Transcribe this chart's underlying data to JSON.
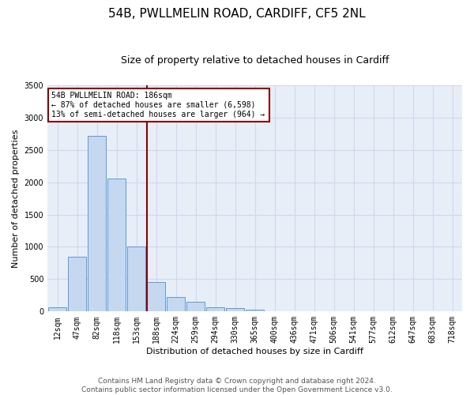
{
  "title": "54B, PWLLMELIN ROAD, CARDIFF, CF5 2NL",
  "subtitle": "Size of property relative to detached houses in Cardiff",
  "xlabel": "Distribution of detached houses by size in Cardiff",
  "ylabel": "Number of detached properties",
  "footnote1": "Contains HM Land Registry data © Crown copyright and database right 2024.",
  "footnote2": "Contains public sector information licensed under the Open Government Licence v3.0.",
  "bin_labels": [
    "12sqm",
    "47sqm",
    "82sqm",
    "118sqm",
    "153sqm",
    "188sqm",
    "224sqm",
    "259sqm",
    "294sqm",
    "330sqm",
    "365sqm",
    "400sqm",
    "436sqm",
    "471sqm",
    "506sqm",
    "541sqm",
    "577sqm",
    "612sqm",
    "647sqm",
    "683sqm",
    "718sqm"
  ],
  "bar_values": [
    60,
    850,
    2720,
    2060,
    1010,
    460,
    230,
    150,
    65,
    55,
    30,
    0,
    0,
    0,
    0,
    0,
    0,
    0,
    0,
    0,
    0
  ],
  "bar_color": "#c5d8f0",
  "bar_edge_color": "#5b9bd5",
  "vline_color": "#8b0000",
  "annotation_line1": "54B PWLLMELIN ROAD: 186sqm",
  "annotation_line2": "← 87% of detached houses are smaller (6,598)",
  "annotation_line3": "13% of semi-detached houses are larger (964) →",
  "annotation_box_color": "#8b0000",
  "ylim": [
    0,
    3500
  ],
  "yticks": [
    0,
    500,
    1000,
    1500,
    2000,
    2500,
    3000,
    3500
  ],
  "grid_color": "#d0d8e8",
  "bg_color": "#e8eef8",
  "title_fontsize": 11,
  "subtitle_fontsize": 9,
  "axis_label_fontsize": 8,
  "tick_fontsize": 7,
  "annotation_fontsize": 7,
  "footnote_fontsize": 6.5
}
